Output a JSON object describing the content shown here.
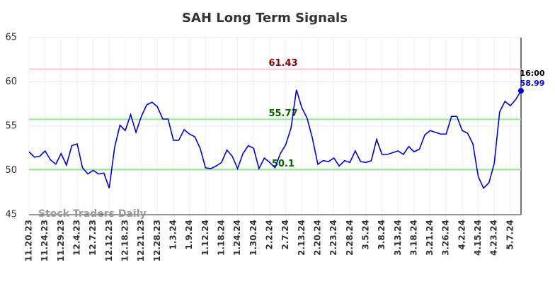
{
  "chart_data": {
    "type": "line",
    "title": "SAH Long Term Signals",
    "categories": [
      "11.20.23",
      null,
      null,
      "11.24.23",
      null,
      null,
      "11.29.23",
      null,
      null,
      "12.4.23",
      null,
      null,
      "12.7.23",
      null,
      null,
      "12.12.23",
      null,
      null,
      "12.18.23",
      null,
      null,
      "12.21.23",
      null,
      null,
      "12.28.23",
      null,
      null,
      "1.3.24",
      null,
      null,
      "1.9.24",
      null,
      null,
      "1.12.24",
      null,
      null,
      "1.18.24",
      null,
      null,
      "1.24.24",
      null,
      null,
      "1.30.24",
      null,
      null,
      "2.2.24",
      null,
      null,
      "2.7.24",
      null,
      null,
      "2.13.24",
      null,
      null,
      "2.20.24",
      null,
      null,
      "2.23.24",
      null,
      null,
      "2.28.24",
      null,
      null,
      "3.5.24",
      null,
      null,
      "3.8.24",
      null,
      null,
      "3.13.24",
      null,
      null,
      "3.18.24",
      null,
      null,
      "3.21.24",
      null,
      null,
      "3.26.24",
      null,
      null,
      "4.2.24",
      null,
      null,
      "4.15.24",
      null,
      null,
      "4.23.24",
      null,
      null,
      "5.7.24",
      null,
      null
    ],
    "series": [
      {
        "color": "#0000dd",
        "values": [
          52.1,
          51.5,
          51.6,
          52.2,
          51.2,
          50.7,
          51.9,
          50.6,
          52.8,
          53.0,
          50.3,
          49.6,
          50.0,
          49.6,
          49.7,
          48.0,
          52.6,
          55.1,
          54.5,
          56.3,
          54.3,
          56.1,
          57.4,
          57.7,
          57.2,
          55.8,
          55.8,
          53.4,
          53.4,
          54.6,
          54.1,
          53.8,
          52.5,
          50.3,
          50.2,
          50.5,
          50.9,
          52.3,
          51.6,
          50.2,
          51.9,
          52.8,
          52.5,
          50.2,
          51.4,
          50.9,
          50.3,
          51.9,
          52.9,
          54.8,
          59.1,
          57.1,
          55.9,
          53.6,
          50.7,
          51.1,
          51.0,
          51.4,
          50.5,
          51.1,
          50.9,
          52.2,
          51.0,
          50.9,
          51.1,
          53.5,
          51.8,
          51.8,
          52.0,
          52.2,
          51.8,
          52.7,
          52.1,
          52.4,
          54.0,
          54.5,
          54.3,
          54.1,
          54.1,
          56.1,
          56.1,
          54.5,
          54.2,
          53.0,
          49.3,
          48.0,
          48.6,
          50.8,
          56.6,
          57.8,
          57.3,
          58.0,
          58.99
        ]
      }
    ],
    "ylim": [
      45,
      65
    ],
    "yticks": [
      45,
      50,
      55,
      60,
      65
    ],
    "grid": true,
    "hlines": [
      {
        "value": 61.43,
        "color": "#ffc8c8",
        "label_color": "#8b0000"
      },
      {
        "value": 55.77,
        "color": "#90ee90",
        "label_color": "#006400"
      },
      {
        "value": 50.1,
        "color": "#90ee90",
        "label_color": "#006400"
      }
    ],
    "last_time": "16:00",
    "watermark": "Stock Traders Daily"
  }
}
